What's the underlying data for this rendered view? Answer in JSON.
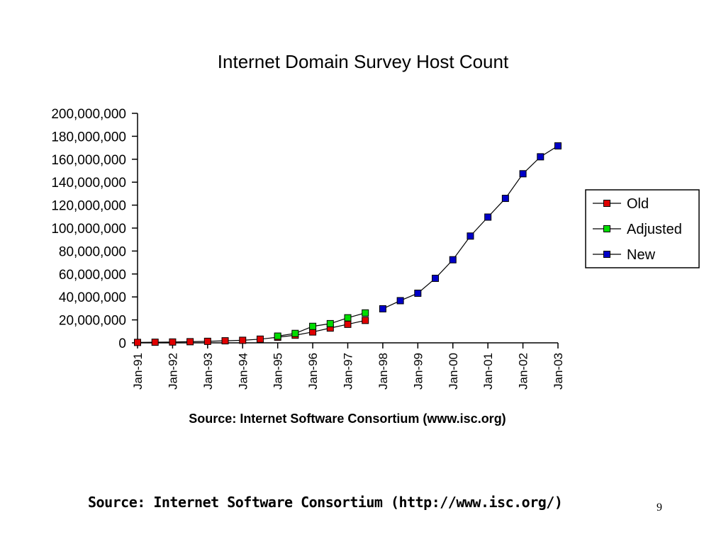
{
  "chart_data": {
    "type": "line",
    "title": "Internet Domain Survey Host Count",
    "xlabel": "Source: Internet Software Consortium (www.isc.org)",
    "ylabel": "",
    "x_tick_labels": [
      "Jan-91",
      "Jan-92",
      "Jan-93",
      "Jan-94",
      "Jan-95",
      "Jan-96",
      "Jan-97",
      "Jan-98",
      "Jan-99",
      "Jan-00",
      "Jan-01",
      "Jan-02",
      "Jan-03"
    ],
    "y_tick_labels": [
      "0",
      "20,000,000",
      "40,000,000",
      "60,000,000",
      "80,000,000",
      "100,000,000",
      "120,000,000",
      "140,000,000",
      "160,000,000",
      "180,000,000",
      "200,000,000"
    ],
    "ylim": [
      0,
      200000000
    ],
    "xlim": [
      "Jan-91",
      "Jan-03"
    ],
    "grid": false,
    "legend_position": "right",
    "series": [
      {
        "name": "Old",
        "color": "#e00000",
        "x": [
          "Jan-91",
          "Jul-91",
          "Jan-92",
          "Jul-92",
          "Jan-93",
          "Jul-93",
          "Jan-94",
          "Jul-94",
          "Jan-95",
          "Jul-95",
          "Jan-96",
          "Jul-96",
          "Jan-97",
          "Jul-97"
        ],
        "values": [
          376000,
          535000,
          727000,
          992000,
          1313000,
          1776000,
          2217000,
          3212000,
          4852000,
          6642000,
          9472000,
          12881000,
          16146000,
          19540000
        ]
      },
      {
        "name": "Adjusted",
        "color": "#00dd00",
        "x": [
          "Jan-95",
          "Jul-95",
          "Jan-96",
          "Jul-96",
          "Jan-97",
          "Jul-97"
        ],
        "values": [
          5846000,
          8200000,
          14352000,
          16729000,
          21819000,
          26053000
        ]
      },
      {
        "name": "New",
        "color": "#0000c8",
        "x": [
          "Jan-98",
          "Jul-98",
          "Jan-99",
          "Jul-99",
          "Jan-00",
          "Jul-00",
          "Jan-01",
          "Jul-01",
          "Jan-02",
          "Jul-02",
          "Jan-03"
        ],
        "values": [
          29670000,
          36739000,
          43230000,
          56218000,
          72398000,
          93047000,
          109574000,
          125888000,
          147345000,
          162128000,
          171638000
        ]
      }
    ]
  },
  "footer": {
    "source_text": "Source: Internet Software Consortium (http://www.isc.org/)",
    "page_number": "9"
  }
}
